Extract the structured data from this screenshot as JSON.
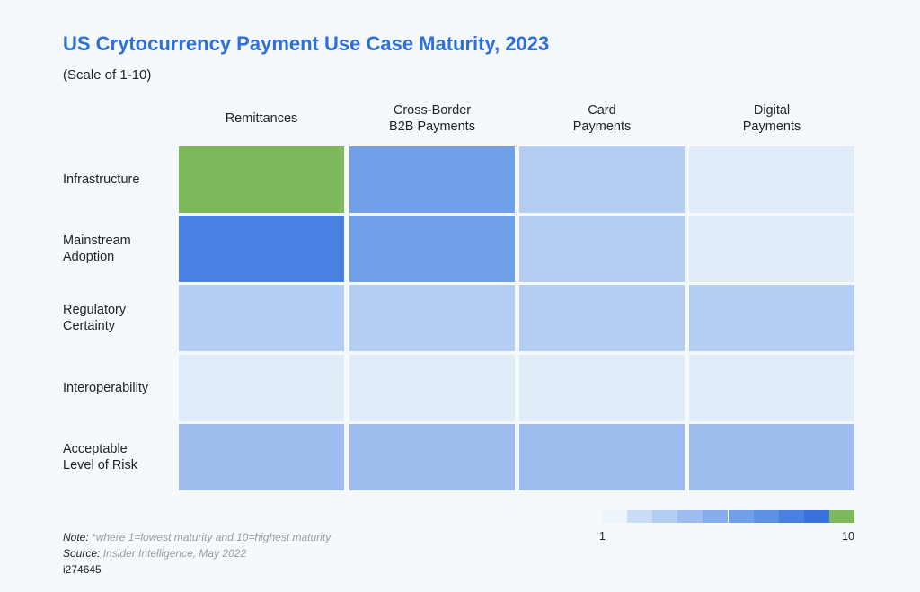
{
  "chart_data": {
    "type": "heatmap",
    "title": "US Crytocurrency Payment Use Case Maturity, 2023",
    "subtitle": "(Scale of 1-10)",
    "columns": [
      "Remittances",
      "Cross-Border\nB2B Payments",
      "Card\nPayments",
      "Digital\nPayments"
    ],
    "rows": [
      "Infrastructure",
      "Mainstream\nAdoption",
      "Regulatory\nCertainty",
      "Interoperability",
      "Acceptable\nLevel of Risk"
    ],
    "values": [
      [
        10,
        6,
        3,
        1
      ],
      [
        8,
        6,
        3,
        1
      ],
      [
        3,
        3,
        3,
        3
      ],
      [
        1,
        1,
        1,
        1
      ],
      [
        4,
        4,
        4,
        4
      ]
    ],
    "scale_range": [
      1,
      10
    ],
    "legend": {
      "min_label": "1",
      "max_label": "10",
      "placement": "bottom-right"
    },
    "colors": [
      "#e1ecf9",
      "#cbdcf6",
      "#b3cdf3",
      "#9dbdef",
      "#87aeec",
      "#72a0e8",
      "#5e91e6",
      "#4a80e2",
      "#3a70dd",
      "#7db85a"
    ]
  },
  "footer": {
    "note_label": "Note:",
    "note_text": " *where 1=lowest maturity and 10=highest maturity",
    "source_label": "Source:",
    "source_text": " Insider Intelligence, May 2022",
    "id": "i274645"
  }
}
